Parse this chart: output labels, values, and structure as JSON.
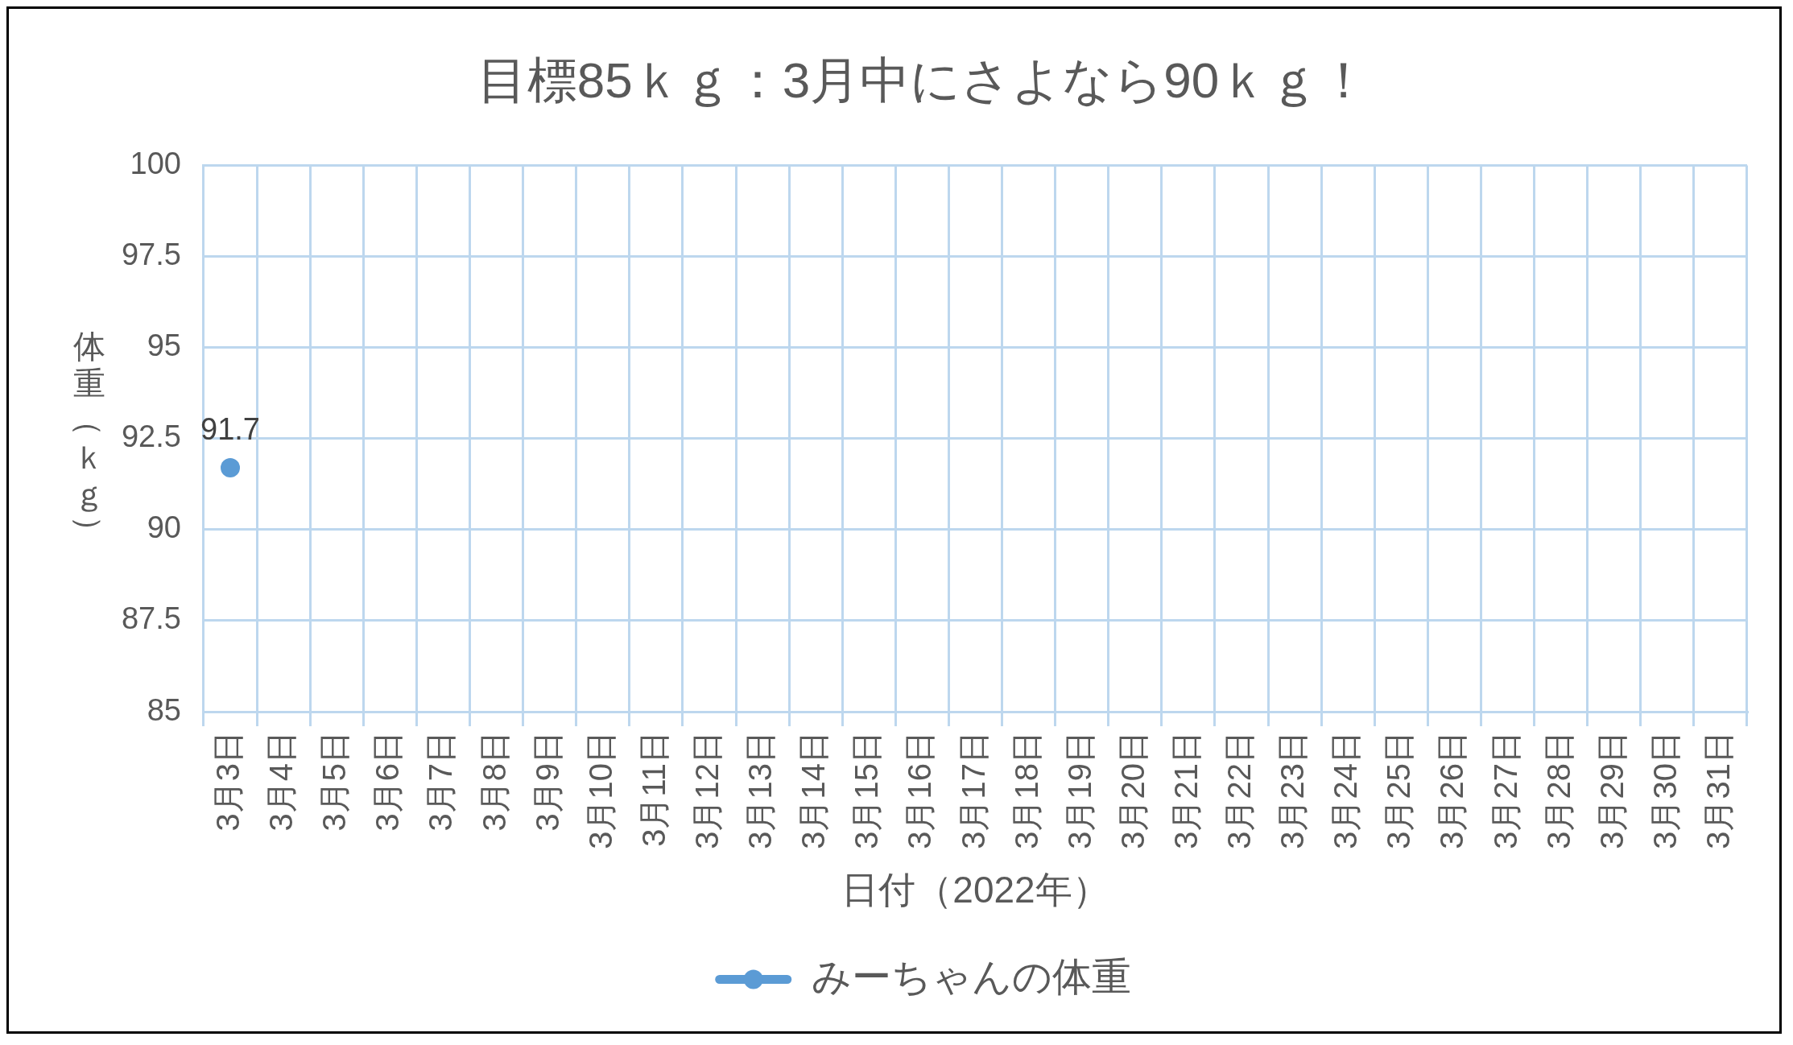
{
  "chart_data": {
    "type": "line",
    "title": "目標85ｋｇ：3月中にさよなら90ｋｇ！",
    "xlabel": "日付（2022年）",
    "ylabel": "体重（ｋｇ）",
    "categories": [
      "3月3日",
      "3月4日",
      "3月5日",
      "3月6日",
      "3月7日",
      "3月8日",
      "3月9日",
      "3月10日",
      "3月11日",
      "3月12日",
      "3月13日",
      "3月14日",
      "3月15日",
      "3月16日",
      "3月17日",
      "3月18日",
      "3月19日",
      "3月20日",
      "3月21日",
      "3月22日",
      "3月23日",
      "3月24日",
      "3月25日",
      "3月26日",
      "3月27日",
      "3月28日",
      "3月29日",
      "3月30日",
      "3月31日"
    ],
    "series": [
      {
        "name": "みーちゃんの体重",
        "color": "#5b9bd5",
        "values": [
          91.7,
          null,
          null,
          null,
          null,
          null,
          null,
          null,
          null,
          null,
          null,
          null,
          null,
          null,
          null,
          null,
          null,
          null,
          null,
          null,
          null,
          null,
          null,
          null,
          null,
          null,
          null,
          null,
          null
        ]
      }
    ],
    "ylim": [
      85,
      100
    ],
    "yticks": [
      85,
      87.5,
      90,
      92.5,
      95,
      97.5,
      100
    ],
    "grid": true,
    "legend": "bottom",
    "marker": "circle",
    "line_style": "solid",
    "data_labels": true
  }
}
